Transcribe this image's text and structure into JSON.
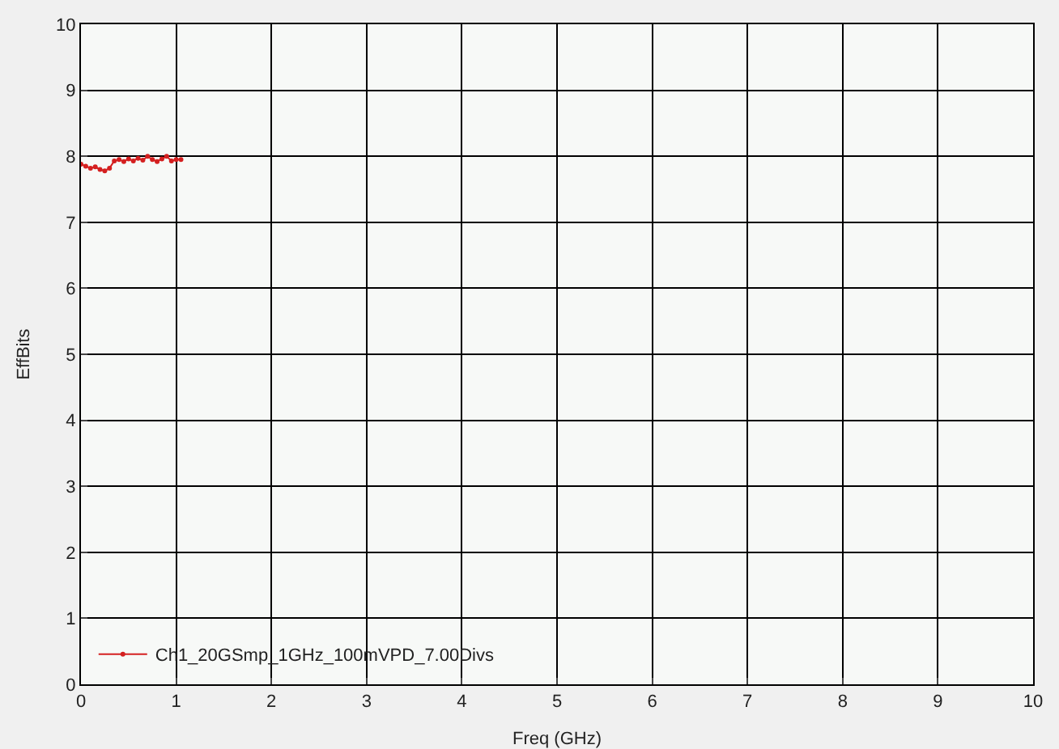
{
  "chart_data": {
    "type": "line",
    "xlabel": "Freq (GHz)",
    "ylabel": "EffBits",
    "x": [
      0,
      0.05,
      0.1,
      0.15,
      0.2,
      0.25,
      0.3,
      0.35,
      0.4,
      0.45,
      0.5,
      0.55,
      0.6,
      0.65,
      0.7,
      0.75,
      0.8,
      0.85,
      0.9,
      0.95,
      1.0,
      1.05
    ],
    "series": [
      {
        "name": "Ch1_20GSmp_1GHz_100mVPD_7.00Divs",
        "color": "#d42020",
        "values": [
          7.88,
          7.85,
          7.82,
          7.84,
          7.8,
          7.78,
          7.82,
          7.93,
          7.95,
          7.92,
          7.96,
          7.93,
          7.97,
          7.94,
          8.0,
          7.95,
          7.92,
          7.96,
          8.0,
          7.93,
          7.95,
          7.95
        ]
      }
    ],
    "xlim": [
      0,
      10
    ],
    "xticks": [
      0,
      1,
      2,
      3,
      4,
      5,
      6,
      7,
      8,
      9,
      10
    ],
    "ylim": [
      0,
      10
    ],
    "yticks": [
      0,
      1,
      2,
      3,
      4,
      5,
      6,
      7,
      8,
      9,
      10
    ],
    "grid": true,
    "legend": "bottom left",
    "marker": "circle",
    "line_style": "solid"
  }
}
